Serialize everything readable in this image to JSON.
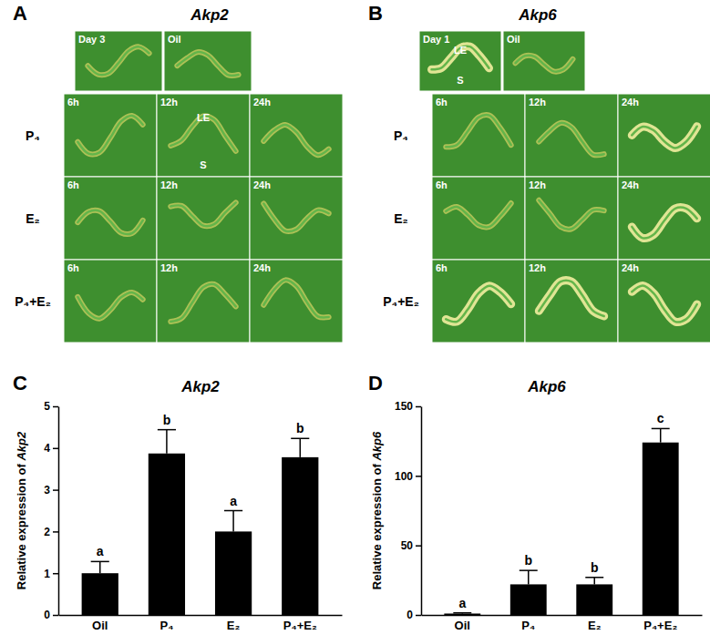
{
  "chart_data": [
    {
      "type": "bar",
      "panel": "C",
      "title": "Akp2",
      "y_label": "Relative expression of Akp2",
      "categories": [
        "Oil",
        "P₄",
        "E₂",
        "P₄+E₂"
      ],
      "values": [
        1.0,
        3.87,
        2.0,
        3.78
      ],
      "errors": [
        0.28,
        0.57,
        0.5,
        0.45
      ],
      "significance": [
        "a",
        "b",
        "a",
        "b"
      ],
      "color": "#000000",
      "ylim": [
        0,
        5
      ],
      "yticks": [
        0,
        1,
        2,
        3,
        4,
        5
      ]
    },
    {
      "type": "bar",
      "panel": "D",
      "title": "Akp6",
      "y_label": "Relative expression of Akp6",
      "categories": [
        "Oil",
        "P₄",
        "E₂",
        "P₄+E₂"
      ],
      "values": [
        1.0,
        22,
        22,
        124
      ],
      "errors": [
        0.5,
        10,
        5,
        10
      ],
      "significance": [
        "a",
        "b",
        "b",
        "c"
      ],
      "color": "#000000",
      "ylim": [
        0,
        150
      ],
      "yticks": [
        0,
        50,
        100,
        150
      ]
    }
  ],
  "micrographs": [
    {
      "panel": "A",
      "title": "Akp2",
      "top": [
        {
          "label": "Day 3"
        },
        {
          "label": "Oil"
        }
      ],
      "rows": [
        {
          "label": "P₄",
          "cells": [
            {
              "time": "6h"
            },
            {
              "time": "12h",
              "regions": [
                "LE",
                "S"
              ]
            },
            {
              "time": "24h"
            }
          ]
        },
        {
          "label": "E₂",
          "cells": [
            {
              "time": "6h"
            },
            {
              "time": "12h"
            },
            {
              "time": "24h"
            }
          ]
        },
        {
          "label": "P₄+E₂",
          "cells": [
            {
              "time": "6h"
            },
            {
              "time": "12h"
            },
            {
              "time": "24h"
            }
          ]
        }
      ]
    },
    {
      "panel": "B",
      "title": "Akp6",
      "top": [
        {
          "label": "Day 1",
          "regions": [
            "LE",
            "S"
          ]
        },
        {
          "label": "Oil"
        }
      ],
      "rows": [
        {
          "label": "P₄",
          "cells": [
            {
              "time": "6h"
            },
            {
              "time": "12h"
            },
            {
              "time": "24h"
            }
          ]
        },
        {
          "label": "E₂",
          "cells": [
            {
              "time": "6h"
            },
            {
              "time": "12h"
            },
            {
              "time": "24h"
            }
          ]
        },
        {
          "label": "P₄+E₂",
          "cells": [
            {
              "time": "6h"
            },
            {
              "time": "12h"
            },
            {
              "time": "24h"
            }
          ]
        }
      ]
    }
  ]
}
